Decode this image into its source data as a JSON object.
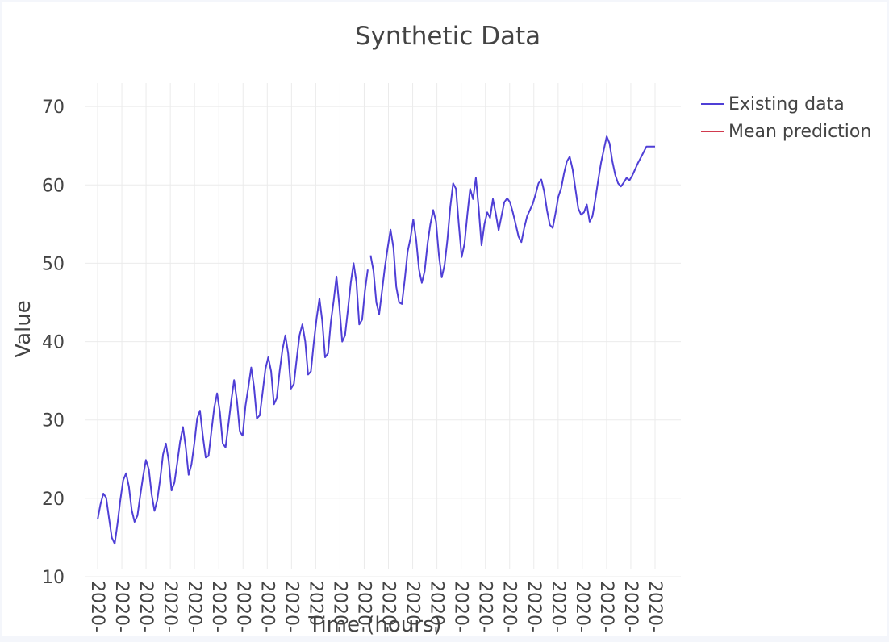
{
  "chart_data": {
    "type": "line",
    "title": "Synthetic Data",
    "xlabel": "Time (hours)",
    "ylabel": "Value",
    "ylim": [
      10,
      73
    ],
    "y_ticks": [
      10,
      20,
      30,
      40,
      50,
      60,
      70
    ],
    "x_tick_labels": [
      "2020-",
      "2020-",
      "2020-",
      "2020-",
      "2020-",
      "2020-",
      "2020-",
      "2020-",
      "2020-",
      "2020-",
      "2020-",
      "2020-",
      "2020-",
      "2020-",
      "2020-",
      "2020-",
      "2020-",
      "2020-",
      "2020-",
      "2020-",
      "2020-",
      "2020-",
      "2020-",
      "2020-"
    ],
    "grid": true,
    "legend_position": "top-right",
    "series": [
      {
        "name": "Existing data",
        "color": "#4f3fd6",
        "x": [
          0,
          0.2,
          0.4,
          0.6,
          0.8,
          1.0,
          1.2,
          1.4,
          1.6,
          1.8,
          2.0,
          2.2,
          2.4,
          2.6,
          2.8,
          3.0,
          3.2,
          3.4,
          3.6,
          3.8,
          4.0,
          4.2,
          4.4,
          4.6,
          4.8,
          5.0,
          5.2,
          5.4,
          5.6,
          5.8,
          6.0,
          6.2,
          6.4,
          6.6,
          6.8,
          7.0,
          7.2,
          7.4,
          7.6,
          7.8,
          8.0,
          8.2,
          8.4,
          8.6,
          8.8,
          9.0,
          9.2,
          9.4,
          9.6,
          9.8,
          10.0,
          10.2,
          10.4,
          10.6,
          10.8,
          11.0,
          11.2,
          11.4,
          11.6,
          11.8,
          12.0,
          12.2,
          12.4,
          12.6,
          12.8,
          13.0,
          13.2,
          13.4,
          13.6,
          13.8,
          14.0,
          14.2,
          14.4,
          14.6,
          14.8,
          15.0,
          15.2,
          15.4,
          15.6,
          15.8,
          16.0,
          16.2,
          16.4,
          16.6,
          16.8,
          17.0,
          17.2,
          17.4,
          17.6,
          17.8,
          18.0,
          18.2,
          18.4,
          18.6,
          18.8,
          19.0
        ],
        "values": [
          17.3,
          19.2,
          20.6,
          20.1,
          17.5,
          15.0,
          14.2,
          16.8,
          19.8,
          22.3,
          23.2,
          21.5,
          18.5,
          17.0,
          17.8,
          20.4,
          22.8,
          24.9,
          23.7,
          20.5,
          18.4,
          19.8,
          22.5,
          25.6,
          27.0,
          24.8,
          21.0,
          22.0,
          24.5,
          27.2,
          29.1,
          26.5,
          23.0,
          24.3,
          27.0,
          30.2,
          31.2,
          28.0,
          25.2,
          25.4,
          28.5,
          31.5,
          33.4,
          31.0,
          27.0,
          26.5,
          29.5,
          32.5,
          35.1,
          32.4,
          28.5,
          28.0,
          31.8,
          34.2,
          36.7,
          34.2,
          30.2,
          30.6,
          33.5,
          36.5,
          38.0,
          36.2,
          32.0,
          32.8,
          36.2,
          39.0,
          40.8,
          38.5,
          34.0,
          34.6,
          37.8,
          40.8,
          42.2,
          40.0,
          35.8,
          36.2,
          39.8,
          43.0,
          45.5,
          42.6,
          38.0,
          38.5,
          42.5,
          45.2,
          48.3,
          44.5,
          40.0,
          40.8,
          44.0,
          47.5,
          50.0,
          47.6,
          42.2,
          42.8,
          46.5,
          49.2
        ]
      },
      {
        "name": "Existing data",
        "color": "#4f3fd6",
        "x": [
          19.2,
          19.4,
          19.6,
          19.8,
          20.0,
          20.2,
          20.4,
          20.6,
          20.8,
          21.0,
          21.2,
          21.4,
          21.6,
          21.8,
          22.0,
          22.2,
          22.4,
          22.6,
          22.8,
          23.0,
          23.2,
          23.4,
          23.6,
          23.8,
          24.0,
          24.2,
          24.4,
          24.6,
          24.8,
          25.0,
          25.2,
          25.4,
          25.6,
          25.8,
          26.0,
          26.2,
          26.4,
          26.6,
          26.8,
          27.0,
          27.2,
          27.4,
          27.6,
          27.8,
          28.0,
          28.2,
          28.4,
          28.6,
          28.8,
          29.0,
          29.2,
          29.4,
          29.6,
          29.8,
          30.0,
          30.2,
          30.4,
          30.6,
          30.8,
          31.0,
          31.2,
          31.4,
          31.6,
          31.8,
          32.0,
          32.2,
          32.4,
          32.6,
          32.8,
          33.0,
          33.2,
          33.4,
          33.6,
          33.8,
          34.0,
          34.2,
          34.4,
          34.6,
          34.8,
          35.0,
          35.2,
          35.4,
          35.6,
          35.8,
          36.0,
          36.2,
          36.4,
          36.6,
          36.8,
          37.0,
          37.2,
          37.4,
          37.6,
          37.8,
          38.0,
          38.2,
          38.4,
          38.6,
          38.8,
          39.0,
          39.2
        ],
        "values": [
          51.0,
          49.0,
          45.0,
          43.5,
          46.5,
          49.5,
          52.0,
          54.3,
          52.0,
          47.0,
          45.0,
          44.8,
          48.0,
          51.5,
          53.2,
          55.6,
          53.0,
          49.2,
          47.5,
          49.0,
          52.5,
          55.0,
          56.8,
          55.3,
          51.0,
          48.2,
          49.8,
          53.0,
          57.2,
          60.2,
          59.5,
          55.0,
          50.8,
          52.5,
          56.2,
          59.5,
          58.2,
          60.9,
          57.0,
          52.3,
          55.0,
          56.5,
          55.8,
          58.2,
          56.3,
          54.2,
          56.0,
          57.8,
          58.3,
          57.8,
          56.5,
          55.0,
          53.4,
          52.7,
          54.5,
          56.0,
          56.8,
          57.6,
          58.8,
          60.2,
          60.7,
          59.2,
          56.8,
          54.9,
          54.5,
          56.4,
          58.5,
          59.6,
          61.5,
          63.0,
          63.6,
          62.0,
          59.5,
          57.0,
          56.2,
          56.5,
          57.5,
          55.3,
          56.0,
          58.2,
          60.6,
          62.8,
          64.5,
          66.2,
          65.3,
          63.0,
          61.3,
          60.2,
          59.8,
          60.3,
          60.9,
          60.6,
          61.2,
          62.0,
          62.8,
          63.5,
          64.2,
          64.9,
          64.9,
          64.9,
          64.9
        ]
      }
    ]
  }
}
